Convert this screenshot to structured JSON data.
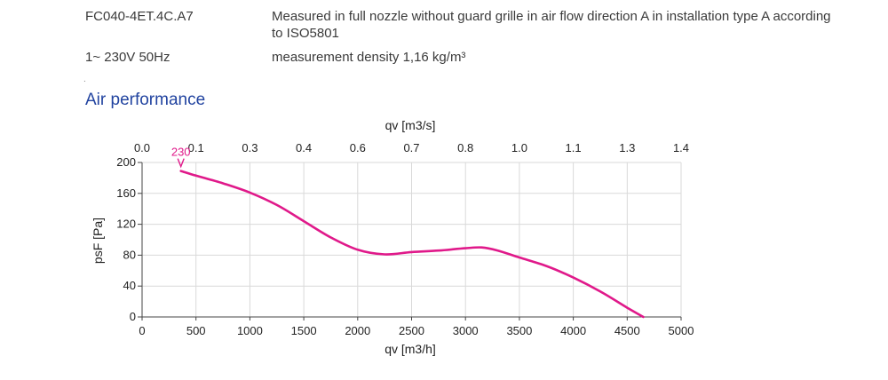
{
  "header": {
    "model": "FC040-4ET.4C.A7",
    "supply": "1~ 230V 50Hz",
    "description": "Measured in full nozzle without guard grille in air flow direction A in installation type A according to ISO5801",
    "density": "measurement density 1,16 kg/m³",
    "marker": "."
  },
  "section_title": "Air performance",
  "chart_data": {
    "type": "line",
    "title": "",
    "xlabel": "qv [m3/h]",
    "ylabel": "psF [Pa]",
    "x2label": "qv [m3/s]",
    "xlim": [
      0,
      5000
    ],
    "ylim": [
      0,
      200
    ],
    "x_ticks": [
      0,
      500,
      1000,
      1500,
      2000,
      2500,
      3000,
      3500,
      4000,
      4500,
      5000
    ],
    "y_ticks": [
      0,
      40,
      80,
      120,
      160,
      200
    ],
    "x2_ticks": [
      {
        "label": "0.0",
        "at": 0
      },
      {
        "label": "0.1",
        "at": 500
      },
      {
        "label": "0.3",
        "at": 1000
      },
      {
        "label": "0.4",
        "at": 1500
      },
      {
        "label": "0.6",
        "at": 2000
      },
      {
        "label": "0.7",
        "at": 2500
      },
      {
        "label": "0.8",
        "at": 3000
      },
      {
        "label": "1.0",
        "at": 3500
      },
      {
        "label": "1.1",
        "at": 4000
      },
      {
        "label": "1.3",
        "at": 4500
      },
      {
        "label": "1.4",
        "at": 5000
      }
    ],
    "grid": true,
    "series": [
      {
        "name": "",
        "color": "#e0198a",
        "x": [
          360,
          500,
          750,
          1000,
          1250,
          1500,
          1750,
          2000,
          2250,
          2500,
          2750,
          3000,
          3150,
          3300,
          3500,
          3750,
          4000,
          4250,
          4500,
          4650
        ],
        "y": [
          189,
          183,
          173,
          161,
          145,
          124,
          103,
          87,
          81,
          84,
          86,
          89,
          90,
          86,
          77,
          66,
          51,
          33,
          12,
          0
        ]
      }
    ],
    "annotations": [
      {
        "text": "230",
        "x": 360,
        "y": 189,
        "color": "#e0198a"
      }
    ]
  }
}
